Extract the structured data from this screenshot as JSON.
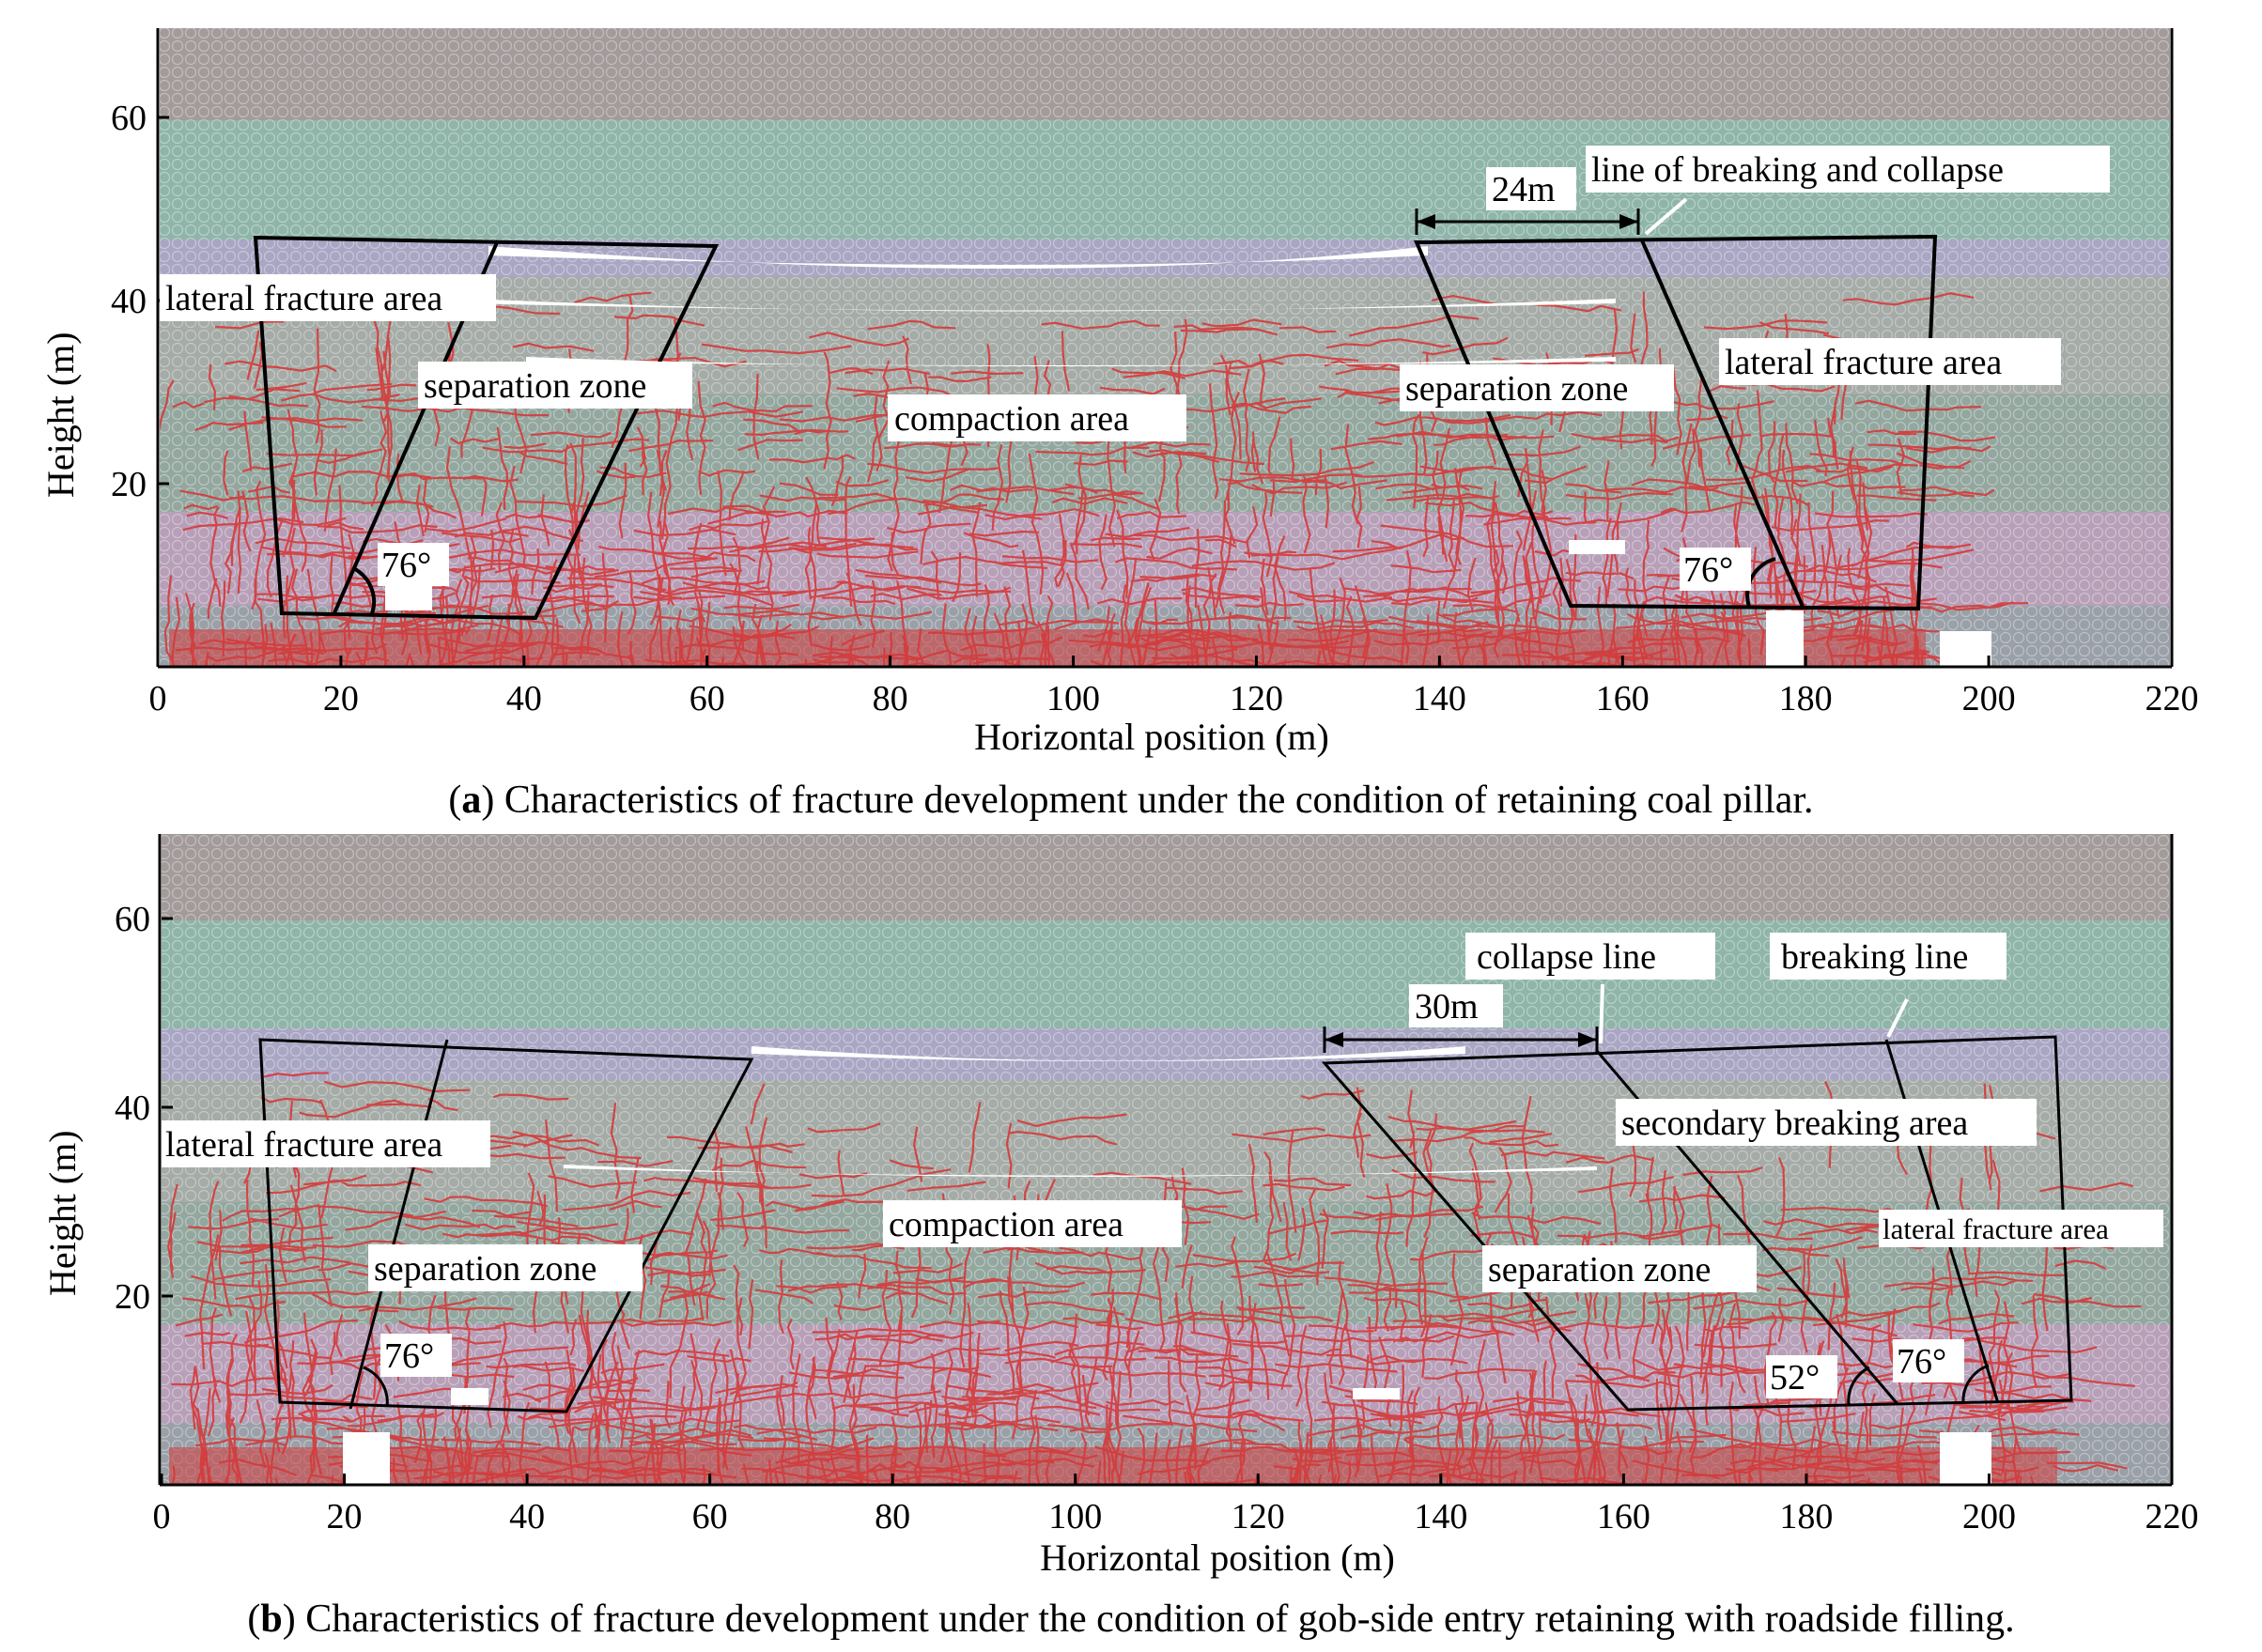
{
  "colors": {
    "layer_top": "#a39a9a",
    "layer_green": "#8fb5a9",
    "layer_purple": "#a9a6c4",
    "layer_gray": "#a5aba6",
    "layer_green_dark": "#93a79f",
    "layer_mauve": "#b79fb8",
    "layer_bottom": "#9aa0a8",
    "fracture": "#d43a3a",
    "void": "#ffffff",
    "outline": "#000000"
  },
  "panels": [
    {
      "id": "a",
      "caption_letter": "a",
      "caption_text": ") Characteristics of fracture development under the condition of retaining coal pillar.",
      "caption_open": "(",
      "ylabel": "Height (m)",
      "xlabel": "Horizontal position (m)",
      "xticks": [
        "0",
        "20",
        "40",
        "60",
        "80",
        "100",
        "120",
        "140",
        "160",
        "180",
        "200",
        "220"
      ],
      "yticks": [
        "20",
        "40",
        "60"
      ],
      "labels": {
        "lateral_left": "lateral fracture area",
        "separation_left": "separation zone",
        "compaction": "compaction area",
        "separation_right": "separation zone",
        "lateral_right": "lateral fracture area",
        "line_break": "line of breaking and collapse",
        "dimension": "24m",
        "angle_left": "76°",
        "angle_right": "76°"
      }
    },
    {
      "id": "b",
      "caption_letter": "b",
      "caption_text": ") Characteristics of fracture development under the condition of gob-side entry retaining with roadside filling.",
      "caption_open": "(",
      "ylabel": "Height (m)",
      "xlabel": "Horizontal position (m)",
      "xticks": [
        "0",
        "20",
        "40",
        "60",
        "80",
        "100",
        "120",
        "140",
        "160",
        "180",
        "200",
        "220"
      ],
      "yticks": [
        "20",
        "40",
        "60"
      ],
      "labels": {
        "lateral_left": "lateral fracture area",
        "separation_left": "separation zone",
        "compaction": "compaction area",
        "separation_right": "separation zone",
        "secondary": "secondary breaking area",
        "lateral_right": "lateral fracture area",
        "collapse_line": "collapse line",
        "breaking_line": "breaking line",
        "dimension": "30m",
        "angle_left": "76°",
        "angle_52": "52°",
        "angle_right": "76°"
      }
    }
  ]
}
